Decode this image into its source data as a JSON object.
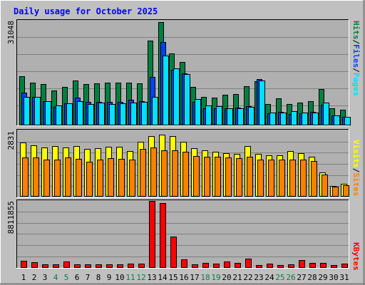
{
  "chart_data": {
    "type": "bar",
    "title": "Daily usage for October 2025",
    "categories": [
      "1",
      "2",
      "3",
      "4",
      "5",
      "6",
      "7",
      "8",
      "9",
      "10",
      "11",
      "12",
      "13",
      "14",
      "15",
      "16",
      "17",
      "18",
      "19",
      "20",
      "21",
      "22",
      "23",
      "24",
      "25",
      "26",
      "27",
      "28",
      "29",
      "30",
      "31"
    ],
    "weekend_days": [
      "4",
      "5",
      "11",
      "12",
      "18",
      "19",
      "25",
      "26"
    ],
    "panels": [
      {
        "name": "hits-files-pages",
        "scale_label": "31048",
        "ymax": 31048,
        "series": [
          {
            "name": "Hits",
            "color": "#008040",
            "values": [
              14600,
              12800,
              12400,
              10500,
              11400,
              13500,
              12300,
              12600,
              12700,
              12800,
              12700,
              12600,
              25200,
              30900,
              21500,
              19000,
              11400,
              8600,
              8200,
              9200,
              9300,
              11700,
              13200,
              6400,
              8000,
              6400,
              6700,
              7300,
              10900,
              5000,
              4600
            ]
          },
          {
            "name": "Files",
            "color": "#0040ff",
            "values": [
              9800,
              8400,
              7200,
              5500,
              6600,
              8200,
              7000,
              7000,
              7000,
              7100,
              7600,
              7200,
              14400,
              24900,
              16500,
              15600,
              7000,
              5200,
              5000,
              5200,
              5300,
              5700,
              13900,
              3700,
              4000,
              3500,
              3700,
              4000,
              6100,
              3000,
              2600
            ]
          },
          {
            "name": "Pages",
            "color": "#00e0ff",
            "values": [
              8600,
              8600,
              7200,
              6000,
              6500,
              7300,
              6300,
              6700,
              6300,
              6600,
              6900,
              7100,
              8500,
              20800,
              17000,
              15300,
              7900,
              5900,
              5700,
              5000,
              5200,
              5600,
              13400,
              3900,
              3800,
              4200,
              3800,
              3800,
              6900,
              3000,
              2600
            ]
          }
        ]
      },
      {
        "name": "visits-sites",
        "scale_label": "2831",
        "ymax": 2831,
        "series": [
          {
            "name": "Visits",
            "color": "#ffff00",
            "values": [
              2300,
              2200,
              2100,
              2150,
              2100,
              2150,
              2050,
              2070,
              2130,
              2130,
              1960,
              2330,
              2580,
              2660,
              2580,
              2340,
              2070,
              1990,
              1930,
              1850,
              1830,
              2160,
              1820,
              1780,
              1780,
              1950,
              1850,
              1700,
              1030,
              450,
              550
            ]
          },
          {
            "name": "Sites",
            "color": "#ff8000",
            "values": [
              1670,
              1660,
              1590,
              1580,
              1670,
              1600,
              1500,
              1590,
              1640,
              1600,
              1590,
              2050,
              2100,
              1970,
              1980,
              1910,
              1720,
              1700,
              1700,
              1670,
              1630,
              1690,
              1590,
              1580,
              1570,
              1590,
              1580,
              1510,
              930,
              430,
              500
            ]
          }
        ]
      },
      {
        "name": "kbytes",
        "scale_label": "8811855",
        "ymax": 8811855,
        "series": [
          {
            "name": "KBytes",
            "color": "#ff0000",
            "values": [
              960000,
              720000,
              430000,
              480000,
              860000,
              460000,
              480000,
              480000,
              440000,
              500000,
              520000,
              580000,
              8800000,
              8560000,
              4090000,
              1080000,
              430000,
              700000,
              560000,
              800000,
              670000,
              1230000,
              410000,
              560000,
              360000,
              480000,
              1050000,
              620000,
              690000,
              390000,
              520000
            ]
          }
        ]
      }
    ]
  },
  "legend": {
    "panel1": [
      {
        "text": "Hits",
        "color": "#008040"
      },
      {
        "text": "/",
        "color": "#000000"
      },
      {
        "text": "Files",
        "color": "#0040ff"
      },
      {
        "text": "/",
        "color": "#000000"
      },
      {
        "text": "Pages",
        "color": "#00e0ff"
      }
    ],
    "panel2": [
      {
        "text": "Visits",
        "color": "#ffff00"
      },
      {
        "text": "/",
        "color": "#000000"
      },
      {
        "text": "Sites",
        "color": "#ff8000"
      }
    ],
    "panel3": [
      {
        "text": "KBytes",
        "color": "#ff0000"
      }
    ]
  }
}
